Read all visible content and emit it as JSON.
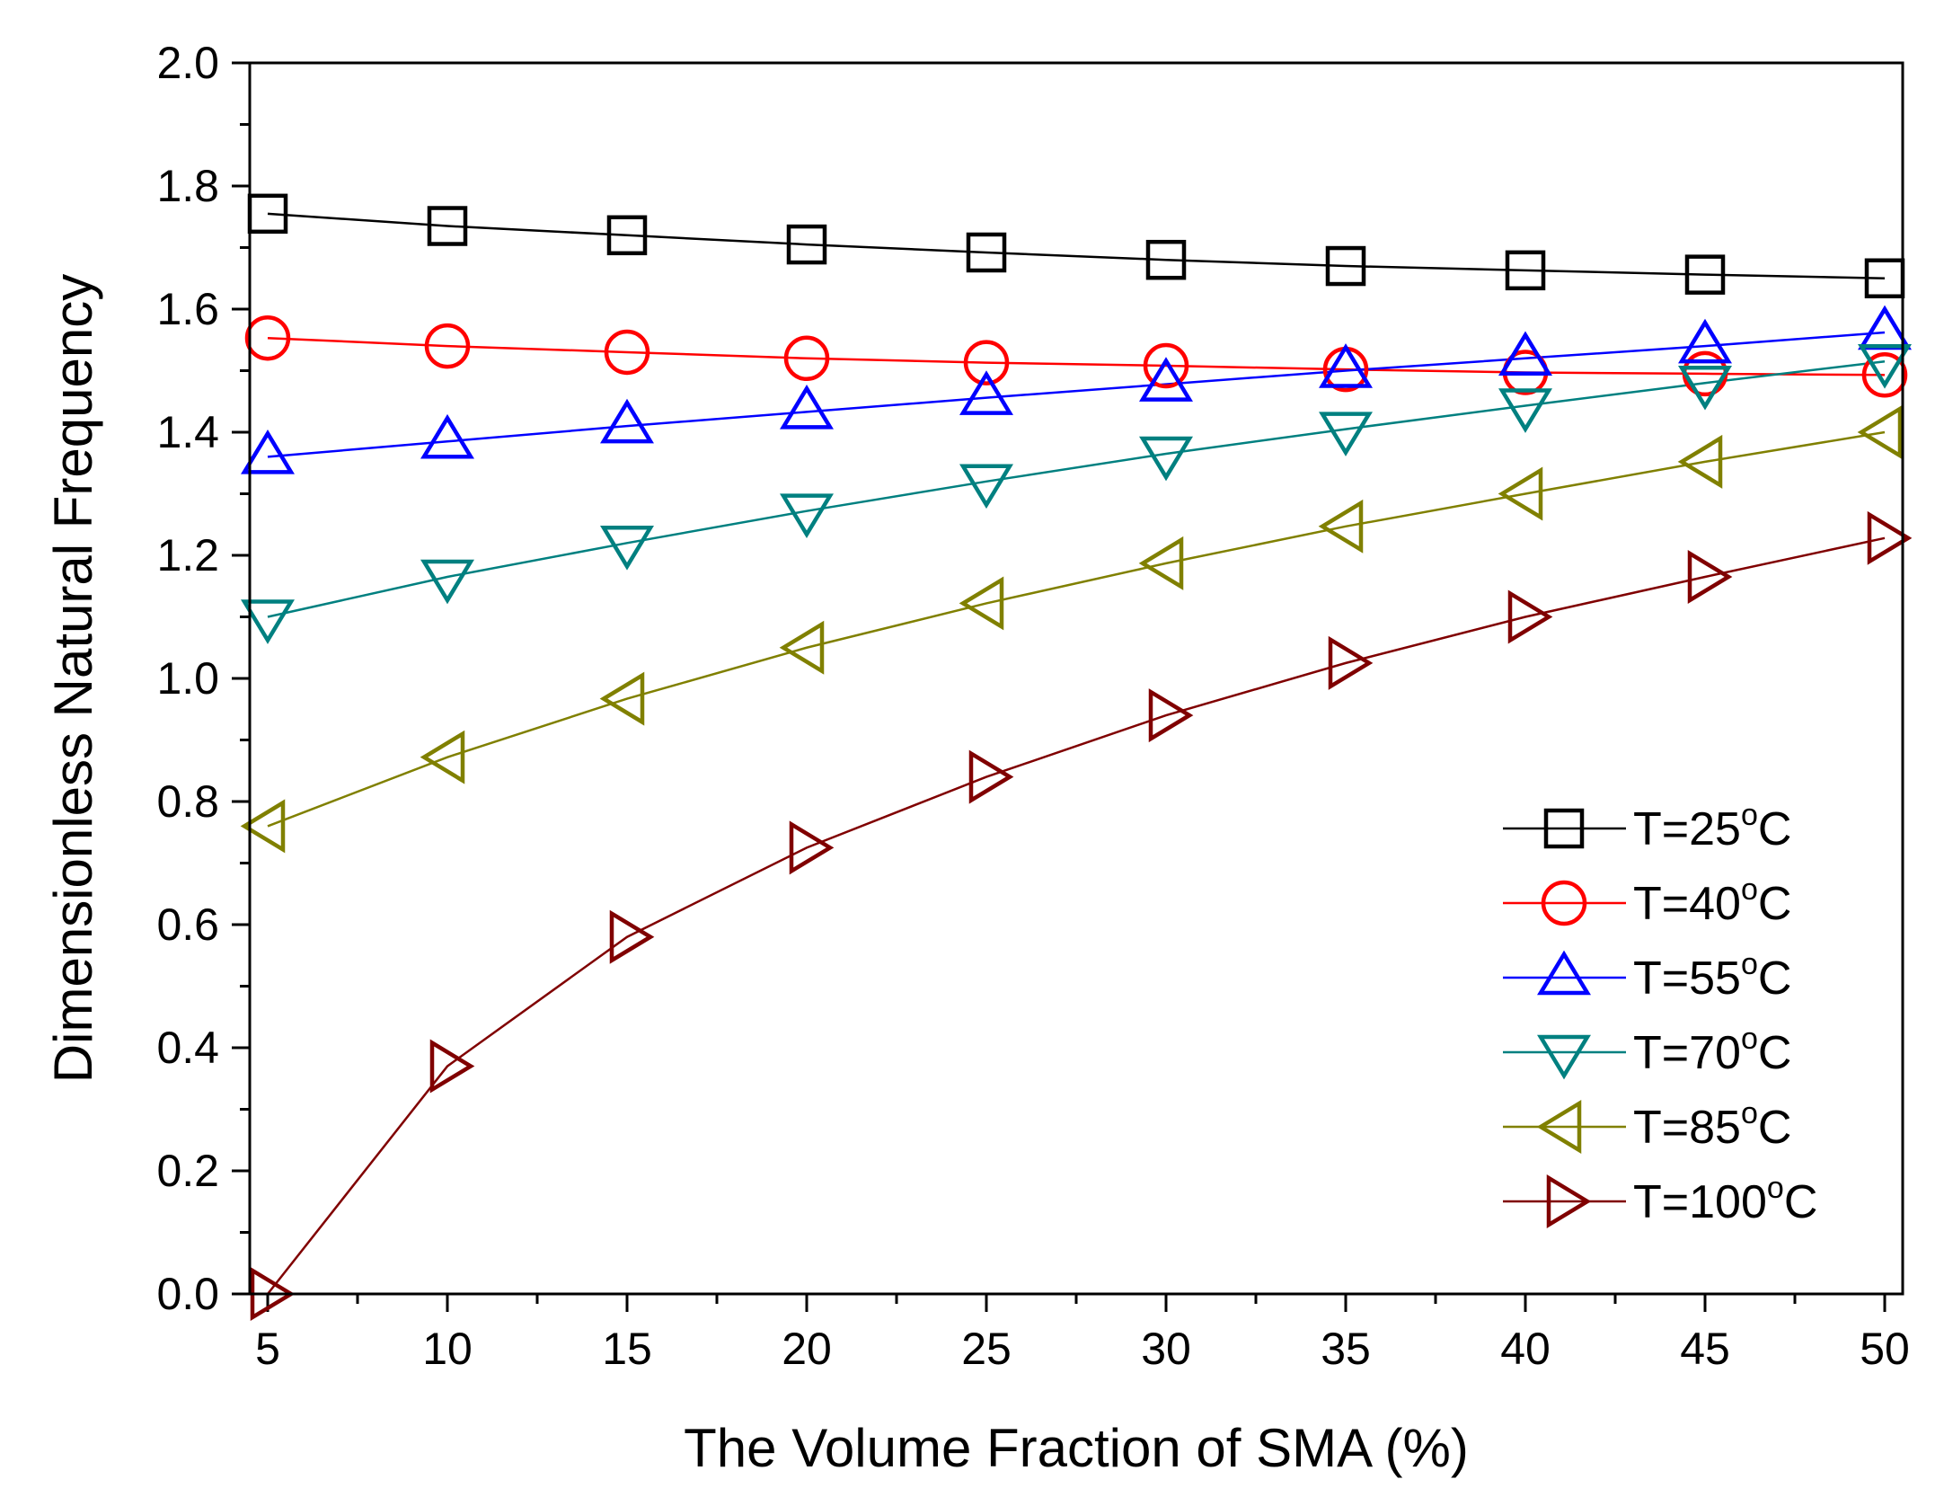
{
  "chart_data": {
    "type": "line",
    "title": "",
    "xlabel": "The Volume Fraction of SMA (%)",
    "ylabel": "Dimensionless Natural Frequency",
    "xlim": [
      4.5,
      50.5
    ],
    "ylim": [
      0.0,
      2.0
    ],
    "x_ticks": [
      "5",
      "10",
      "15",
      "20",
      "25",
      "30",
      "35",
      "40",
      "45",
      "50"
    ],
    "y_ticks": [
      "0.0",
      "0.2",
      "0.4",
      "0.6",
      "0.8",
      "1.0",
      "1.2",
      "1.4",
      "1.6",
      "1.8",
      "2.0"
    ],
    "x": [
      5,
      10,
      15,
      20,
      25,
      30,
      35,
      40,
      45,
      50
    ],
    "legend_position": "lower-right",
    "degree_symbol": "o",
    "series": [
      {
        "name": "T=25",
        "unit": "C",
        "marker": "square",
        "color": "#000000",
        "values": [
          1.755,
          1.735,
          1.72,
          1.705,
          1.692,
          1.68,
          1.67,
          1.663,
          1.656,
          1.65
        ]
      },
      {
        "name": "T=40",
        "unit": "C",
        "marker": "circle",
        "color": "#ff0000",
        "values": [
          1.553,
          1.54,
          1.53,
          1.52,
          1.513,
          1.508,
          1.502,
          1.497,
          1.495,
          1.493
        ]
      },
      {
        "name": "T=55",
        "unit": "C",
        "marker": "triangle-up",
        "color": "#0000ff",
        "values": [
          1.36,
          1.385,
          1.41,
          1.433,
          1.456,
          1.478,
          1.5,
          1.52,
          1.54,
          1.562
        ]
      },
      {
        "name": "T=70",
        "unit": "C",
        "marker": "triangle-down",
        "color": "#008080",
        "values": [
          1.1,
          1.165,
          1.22,
          1.272,
          1.32,
          1.365,
          1.405,
          1.443,
          1.48,
          1.515
        ]
      },
      {
        "name": "T=85",
        "unit": "C",
        "marker": "triangle-left",
        "color": "#808000",
        "values": [
          0.76,
          0.872,
          0.967,
          1.05,
          1.122,
          1.187,
          1.247,
          1.3,
          1.352,
          1.4
        ]
      },
      {
        "name": "T=100",
        "unit": "C",
        "marker": "triangle-right",
        "color": "#800000",
        "values": [
          0.0,
          0.37,
          0.58,
          0.725,
          0.84,
          0.94,
          1.025,
          1.1,
          1.165,
          1.228
        ]
      }
    ]
  }
}
